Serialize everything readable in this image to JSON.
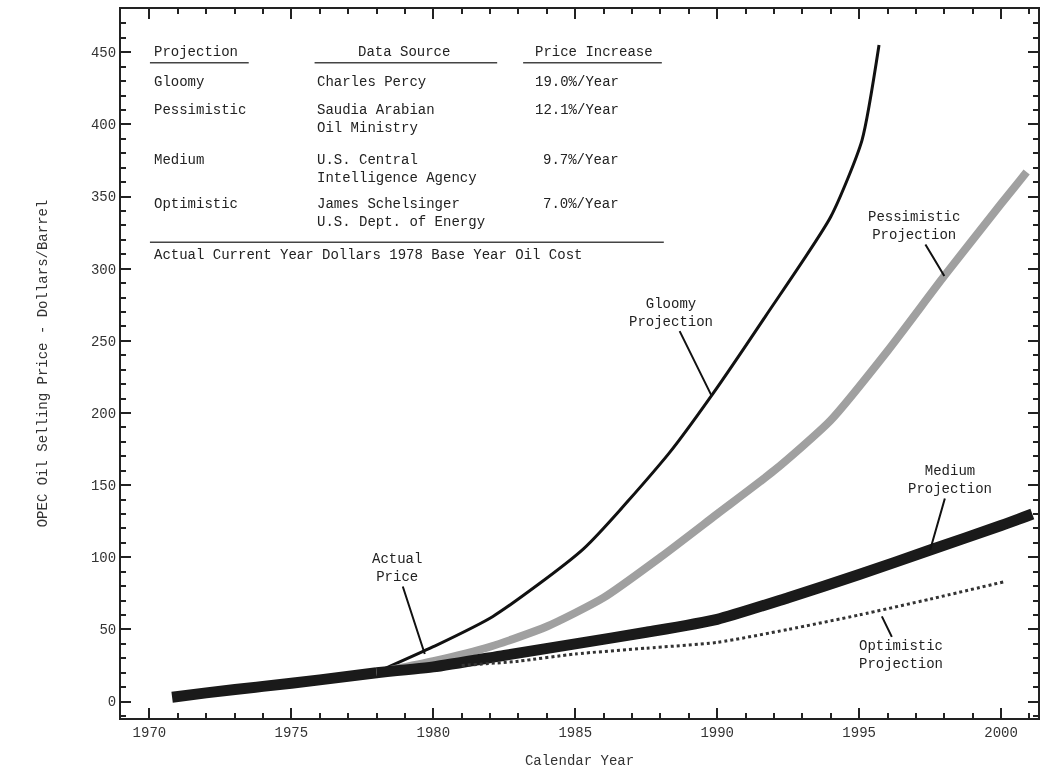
{
  "chart_data": {
    "type": "line",
    "xlabel": "Calendar Year",
    "ylabel": "OPEC Oil Selling Price - Dollars/Barrel",
    "xlim": [
      1969.0,
      2001.3
    ],
    "xticks": [
      1970,
      1975,
      1980,
      1985,
      1990,
      1995,
      2000
    ],
    "ylim": [
      -11.4,
      480
    ],
    "yticks": [
      0,
      50,
      100,
      150,
      200,
      250,
      300,
      350,
      400,
      450
    ],
    "series": [
      {
        "color": "#1a1a1a",
        "line_style": "solid",
        "x": [
          1970.8,
          1972,
          1974,
          1976,
          1978
        ],
        "values": [
          3,
          6,
          10.5,
          15,
          20
        ]
      },
      {
        "color": "#111111",
        "line_style": "solid",
        "x": [
          1978.2,
          1980.0,
          1982.1,
          1985.3,
          1988.3,
          1989.8,
          1991.7,
          1994.0,
          1995.1,
          1995.7
        ],
        "values": [
          22,
          38,
          59,
          106,
          172,
          212,
          267,
          336,
          389,
          455
        ]
      },
      {
        "color": "#a0a0a0",
        "line_style": "solid",
        "x": [
          1978.5,
          1980,
          1982,
          1984,
          1986,
          1988,
          1990,
          1992,
          1994,
          1996,
          1998,
          2000,
          2000.9
        ],
        "values": [
          22,
          28,
          38,
          52,
          72,
          100,
          130,
          160,
          195,
          243,
          295,
          345,
          367
        ]
      },
      {
        "color": "#1a1a1a",
        "line_style": "solid",
        "x": [
          1978,
          1980,
          1982.5,
          1985,
          1987.5,
          1990,
          1992.5,
          1995,
          1997.5,
          2000,
          2001.1
        ],
        "values": [
          20,
          24,
          32,
          40,
          48,
          57,
          72,
          88,
          105,
          122,
          130
        ]
      },
      {
        "color": "#333333",
        "line_style": "dotted",
        "x": [
          1981,
          1983,
          1985,
          1987.5,
          1990,
          1992.5,
          1995,
          1997.5,
          2000.1
        ],
        "values": [
          25,
          28,
          33,
          37,
          41,
          50,
          60,
          71,
          83
        ]
      }
    ],
    "annotations": [
      {
        "text": "Actual\nPrice",
        "x": 1979.7,
        "y": 33
      },
      {
        "text": "Gloomy\nProjection",
        "x": 1989.8,
        "y": 212
      },
      {
        "text": "Pessimistic\nProjection",
        "x": 1998,
        "y": 295
      },
      {
        "text": "Medium\nProjection",
        "x": 1997.5,
        "y": 105
      },
      {
        "text": "Optimistic\nProjection",
        "x": 1995.8,
        "y": 59
      },
      "Projection",
      "Data Source",
      "Price Increase",
      "Gloomy",
      "Charles Percy",
      "19.0%/Year",
      "Pessimistic",
      "Saudia Arabian\nOil Ministry",
      "12.1%/Year",
      "Medium",
      "U.S. Central\nIntelligence Agency",
      "9.7%/Year",
      "Optimistic",
      "James Schelsinger\nU.S. Dept. of Energy",
      "7.0%/Year",
      "Actual Current Year Dollars 1978 Base Year Oil Cost"
    ]
  }
}
